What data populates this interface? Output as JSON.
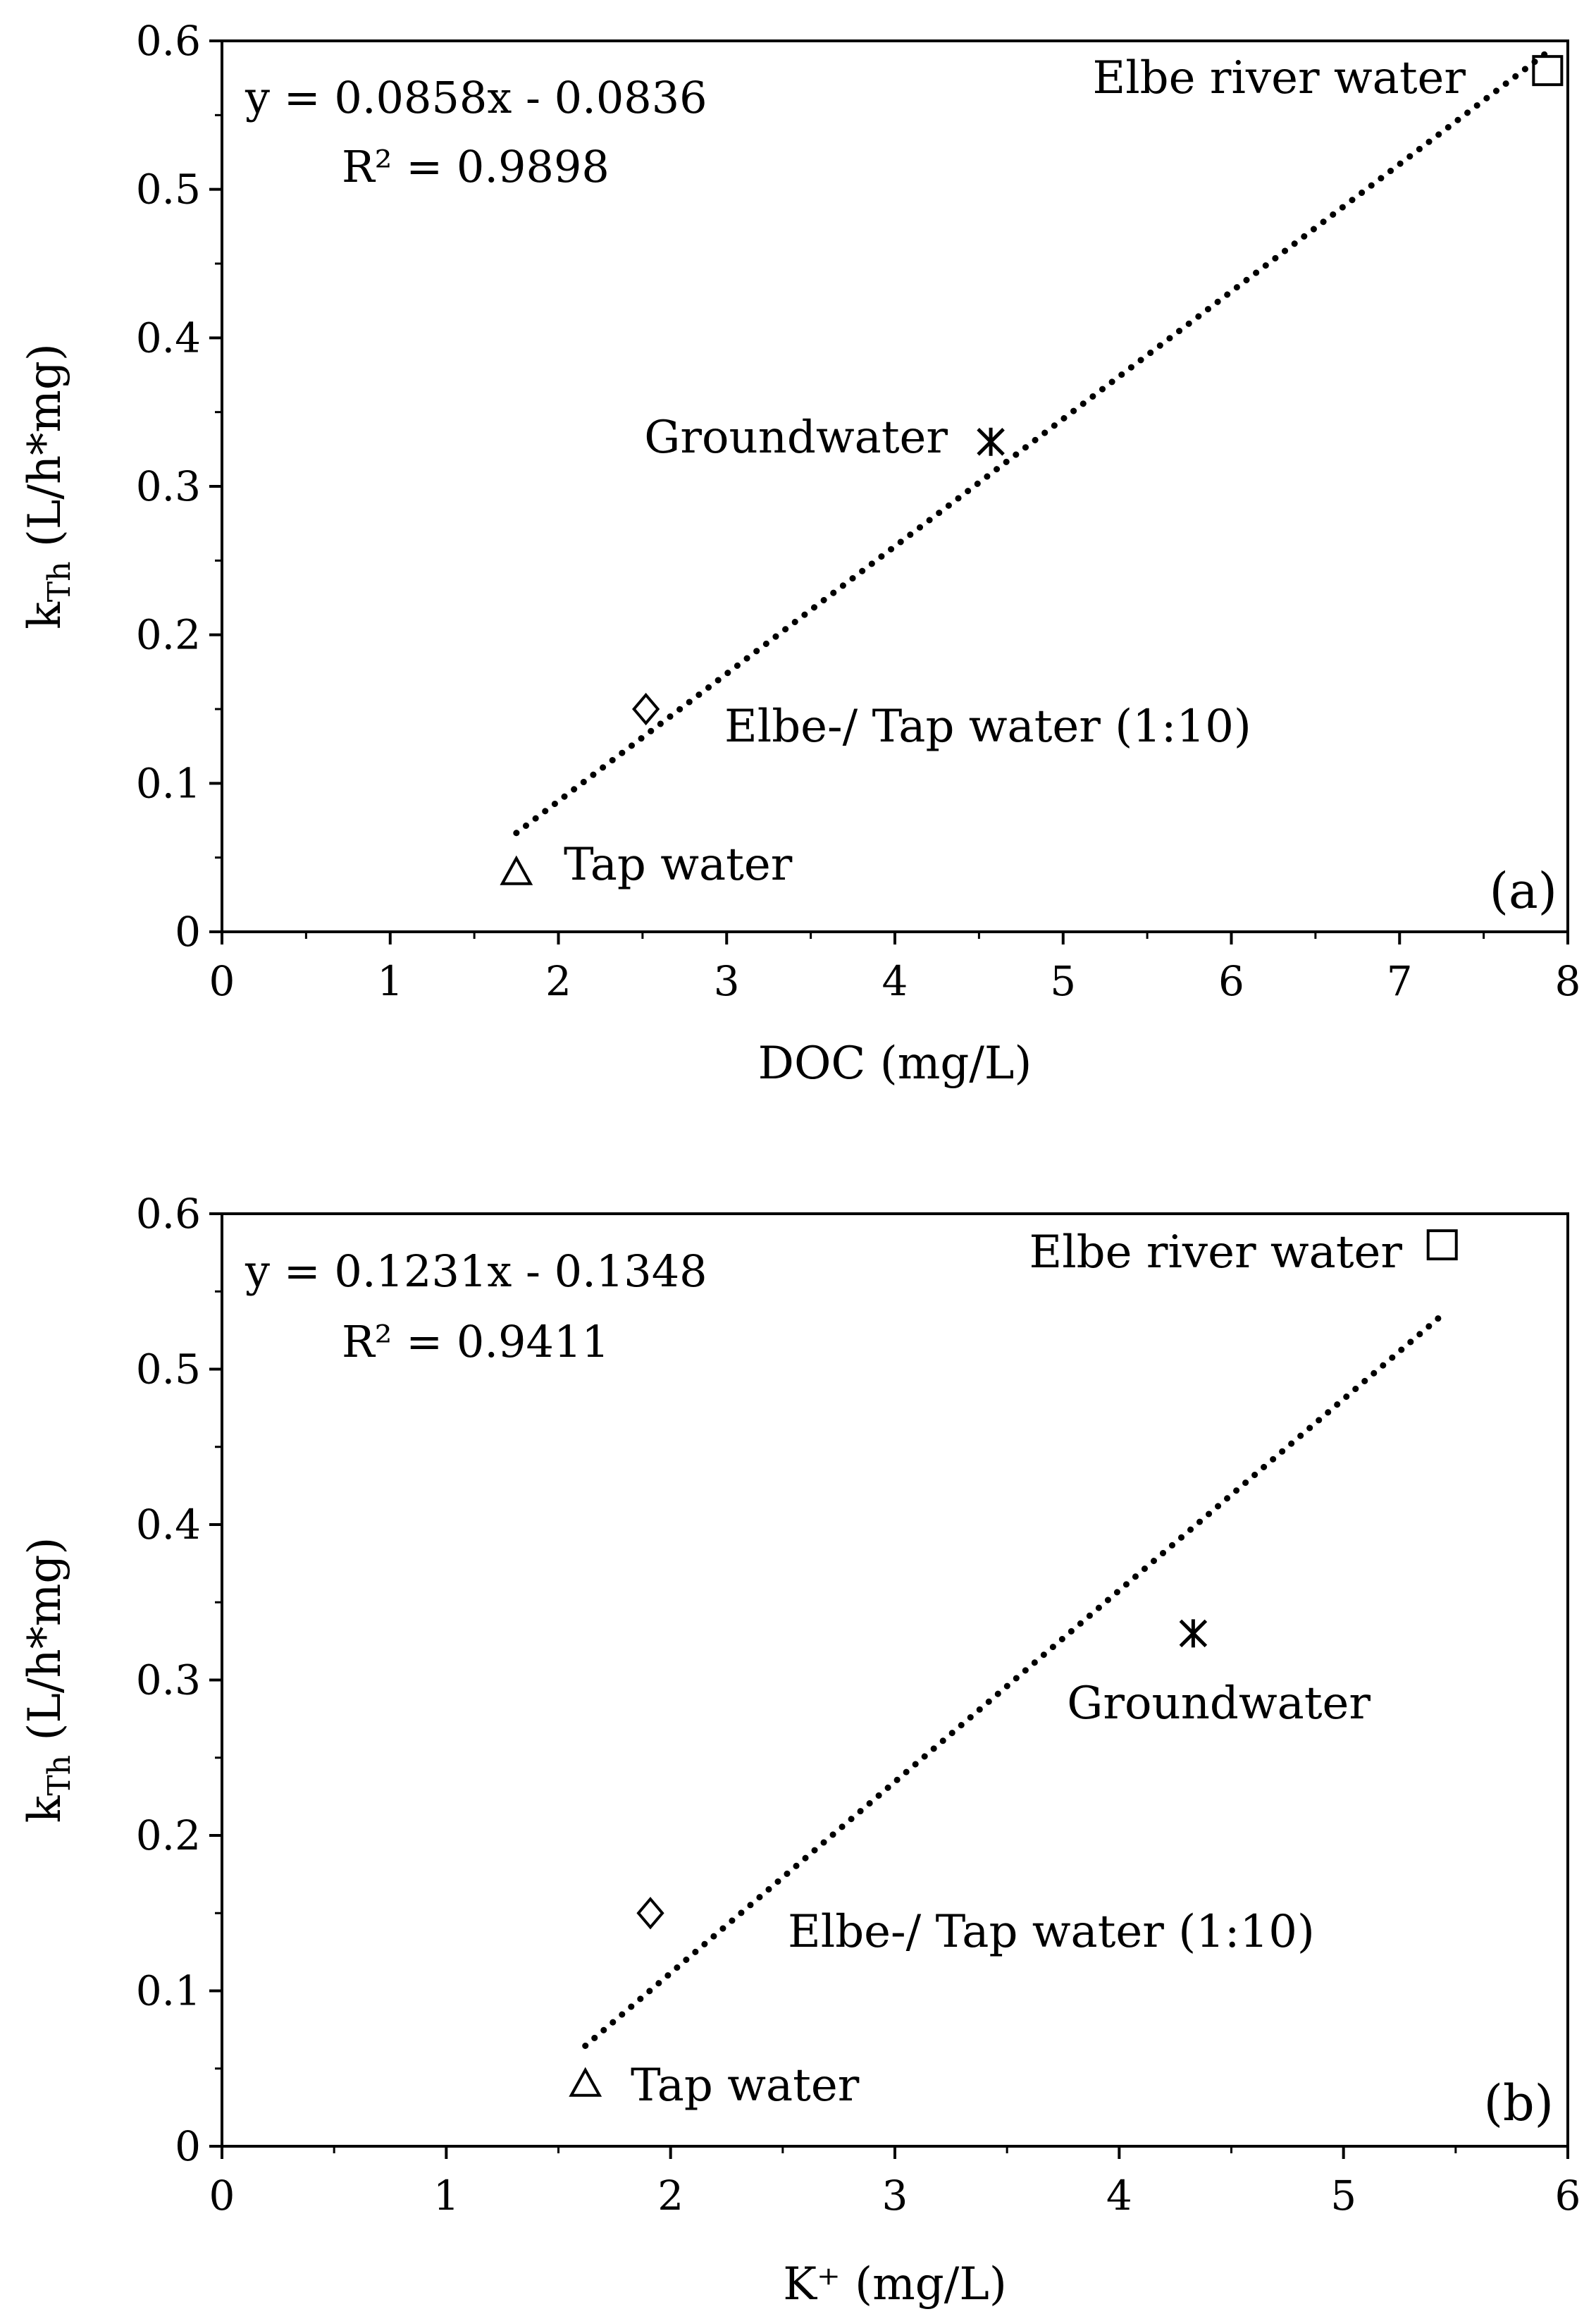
{
  "chart_data": [
    {
      "type": "scatter",
      "panel_label": "(a)",
      "xlabel": "DOC (mg/L)",
      "ylabel_main": "k",
      "ylabel_sub": "Th",
      "ylabel_rest": "(L/h*mg)",
      "xlim": [
        0,
        8
      ],
      "ylim": [
        0,
        0.6
      ],
      "x_ticks": [
        0,
        1,
        2,
        3,
        4,
        5,
        6,
        7,
        8
      ],
      "y_ticks": [
        0,
        0.1,
        0.2,
        0.3,
        0.4,
        0.5,
        0.6
      ],
      "x_tick_labels": [
        "0",
        "1",
        "2",
        "3",
        "4",
        "5",
        "6",
        "7",
        "8"
      ],
      "y_tick_labels": [
        "0",
        "0.1",
        "0.2",
        "0.3",
        "0.4",
        "0.5",
        "0.6"
      ],
      "grid": false,
      "equation": "y = 0.0858x - 0.0836",
      "r2_text": "R² = 0.9898",
      "trendline": {
        "slope": 0.0858,
        "intercept": -0.0836,
        "x_range": [
          1.75,
          7.9
        ],
        "style": "dotted"
      },
      "points": [
        {
          "name": "Tap water",
          "x": 1.75,
          "y": 0.04,
          "marker": "triangle"
        },
        {
          "name": "Elbe-/ Tap water (1:10)",
          "x": 2.52,
          "y": 0.15,
          "marker": "diamond"
        },
        {
          "name": "Groundwater",
          "x": 4.57,
          "y": 0.33,
          "marker": "asterisk"
        },
        {
          "name": "Elbe river water",
          "x": 7.88,
          "y": 0.58,
          "marker": "square"
        }
      ]
    },
    {
      "type": "scatter",
      "panel_label": "(b)",
      "xlabel": "K⁺ (mg/L)",
      "ylabel_main": "k",
      "ylabel_sub": "Th",
      "ylabel_rest": "(L/h*mg)",
      "xlim": [
        0,
        6
      ],
      "ylim": [
        0,
        0.6
      ],
      "x_ticks": [
        0,
        1,
        2,
        3,
        4,
        5,
        6
      ],
      "y_ticks": [
        0,
        0.1,
        0.2,
        0.3,
        0.4,
        0.5,
        0.6
      ],
      "x_tick_labels": [
        "0",
        "1",
        "2",
        "3",
        "4",
        "5",
        "6"
      ],
      "y_tick_labels": [
        "0",
        "0.1",
        "0.2",
        "0.3",
        "0.4",
        "0.5",
        "0.6"
      ],
      "grid": false,
      "equation": "y = 0.1231x - 0.1348",
      "r2_text": "R² = 0.9411",
      "trendline": {
        "slope": 0.1231,
        "intercept": -0.1348,
        "x_range": [
          1.62,
          5.44
        ],
        "style": "dotted"
      },
      "points": [
        {
          "name": "Tap water",
          "x": 1.62,
          "y": 0.04,
          "marker": "triangle"
        },
        {
          "name": "Elbe-/ Tap water (1:10)",
          "x": 1.91,
          "y": 0.15,
          "marker": "diamond"
        },
        {
          "name": "Groundwater",
          "x": 4.33,
          "y": 0.33,
          "marker": "asterisk"
        },
        {
          "name": "Elbe river water",
          "x": 5.44,
          "y": 0.58,
          "marker": "square"
        }
      ]
    }
  ]
}
